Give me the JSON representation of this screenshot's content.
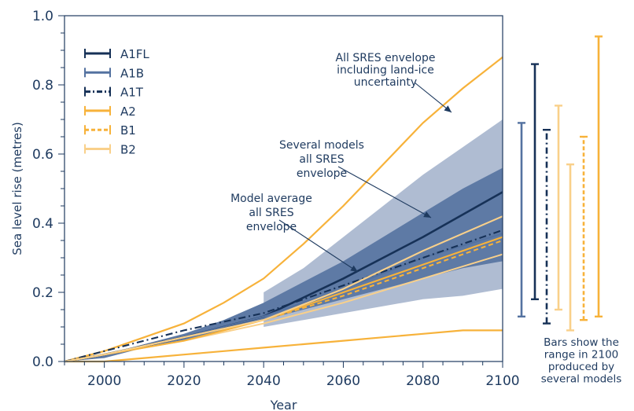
{
  "chart_data": {
    "type": "line",
    "xlabel": "Year",
    "ylabel": "Sea level rise (metres)",
    "xlim": [
      1990,
      2100
    ],
    "ylim": [
      0,
      1.0
    ],
    "xticks": [
      "2000",
      "2020",
      "2040",
      "2060",
      "2080",
      "2100"
    ],
    "yticks": [
      "0.0",
      "0.2",
      "0.4",
      "0.6",
      "0.8",
      "1.0"
    ],
    "grid": false,
    "legend_position": "top-left",
    "colors": {
      "dark_navy": "#163157",
      "slate_blue": "#5472a0",
      "orange": "#f7b23a",
      "light_orange": "#f9d08a",
      "envelope_light": "#afbcd2",
      "envelope_dark": "#5e7aa5",
      "frame": "#1e3a5f"
    },
    "series": [
      {
        "name": "A1FL",
        "style": "solid",
        "color": "#163157",
        "x": [
          1990,
          2000,
          2020,
          2040,
          2060,
          2080,
          2100
        ],
        "y": [
          0.0,
          0.02,
          0.07,
          0.13,
          0.24,
          0.36,
          0.49
        ]
      },
      {
        "name": "A1B",
        "style": "solid",
        "color": "#5472a0",
        "x": [
          1990,
          2000,
          2020,
          2040,
          2060,
          2080,
          2100
        ],
        "y": [
          0.0,
          0.02,
          0.07,
          0.13,
          0.21,
          0.3,
          0.37
        ]
      },
      {
        "name": "A1T",
        "style": "dashdot",
        "color": "#163157",
        "x": [
          1990,
          2000,
          2020,
          2040,
          2060,
          2080,
          2100
        ],
        "y": [
          0.0,
          0.03,
          0.09,
          0.14,
          0.22,
          0.3,
          0.38
        ]
      },
      {
        "name": "A2",
        "style": "solid",
        "color": "#f7b23a",
        "x": [
          1990,
          2000,
          2020,
          2040,
          2060,
          2080,
          2100
        ],
        "y": [
          0.0,
          0.02,
          0.06,
          0.12,
          0.2,
          0.28,
          0.36
        ]
      },
      {
        "name": "B1",
        "style": "dashed",
        "color": "#f7b23a",
        "x": [
          1990,
          2000,
          2020,
          2040,
          2060,
          2080,
          2100
        ],
        "y": [
          0.0,
          0.02,
          0.07,
          0.12,
          0.19,
          0.27,
          0.35
        ]
      },
      {
        "name": "B2",
        "style": "solid",
        "color": "#f9d08a",
        "x": [
          1990,
          2000,
          2020,
          2040,
          2060,
          2080,
          2100
        ],
        "y": [
          0.0,
          0.02,
          0.07,
          0.12,
          0.21,
          0.32,
          0.42
        ]
      }
    ],
    "extra_lines": [
      {
        "color": "#f9d08a",
        "x": [
          1990,
          2000,
          2020,
          2040,
          2060,
          2080,
          2100
        ],
        "y": [
          0.0,
          0.02,
          0.06,
          0.11,
          0.17,
          0.24,
          0.31
        ]
      }
    ],
    "envelopes": [
      {
        "label": "All SRES envelope including land-ice uncertainty",
        "color": "#f7b23a",
        "x": [
          1990,
          2000,
          2010,
          2020,
          2030,
          2040,
          2050,
          2060,
          2070,
          2080,
          2090,
          2100
        ],
        "upper": [
          0.0,
          0.03,
          0.07,
          0.11,
          0.17,
          0.24,
          0.34,
          0.45,
          0.57,
          0.69,
          0.79,
          0.88
        ],
        "lower": [
          0.0,
          0.0,
          0.01,
          0.02,
          0.03,
          0.04,
          0.05,
          0.06,
          0.07,
          0.08,
          0.09,
          0.09
        ]
      },
      {
        "label": "Several models all SRES envelope",
        "color": "#afbcd2",
        "x": [
          2040,
          2050,
          2060,
          2070,
          2080,
          2090,
          2100
        ],
        "upper": [
          0.2,
          0.27,
          0.36,
          0.45,
          0.54,
          0.62,
          0.7
        ],
        "lower": [
          0.1,
          0.12,
          0.14,
          0.16,
          0.18,
          0.19,
          0.21
        ]
      },
      {
        "label": "Model average all SRES envelope",
        "color": "#5e7aa5",
        "x": [
          1990,
          2000,
          2010,
          2020,
          2030,
          2040,
          2050,
          2060,
          2070,
          2080,
          2090,
          2100
        ],
        "upper": [
          0.0,
          0.02,
          0.05,
          0.08,
          0.12,
          0.17,
          0.23,
          0.29,
          0.36,
          0.43,
          0.5,
          0.56
        ],
        "lower": [
          0.0,
          0.01,
          0.04,
          0.06,
          0.09,
          0.12,
          0.15,
          0.18,
          0.21,
          0.24,
          0.27,
          0.29
        ]
      }
    ],
    "annotations": [
      {
        "lines": [
          "All SRES envelope",
          "including land-ice",
          "uncertainty"
        ]
      },
      {
        "lines": [
          "Several models",
          "all SRES",
          "envelope"
        ]
      },
      {
        "lines": [
          "Model average",
          "all SRES",
          "envelope"
        ]
      }
    ],
    "range_bars_2100": [
      {
        "scenario": "A1B",
        "low": 0.13,
        "high": 0.69,
        "style": "solid",
        "color": "#5472a0"
      },
      {
        "scenario": "A1FL",
        "low": 0.18,
        "high": 0.86,
        "style": "solid",
        "color": "#163157"
      },
      {
        "scenario": "A1T",
        "low": 0.11,
        "high": 0.67,
        "style": "dashdot",
        "color": "#163157"
      },
      {
        "scenario": "B2",
        "low": 0.15,
        "high": 0.74,
        "style": "solid",
        "color": "#f9d08a"
      },
      {
        "scenario": "B1",
        "low": 0.09,
        "high": 0.57,
        "style": "solid",
        "color": "#f9d08a"
      },
      {
        "scenario": "B1",
        "low": 0.12,
        "high": 0.65,
        "style": "dashed",
        "color": "#f7b23a"
      },
      {
        "scenario": "A2",
        "low": 0.13,
        "high": 0.94,
        "style": "solid",
        "color": "#f7b23a"
      }
    ],
    "bars_note": [
      "Bars show the",
      "range in 2100",
      "produced by",
      "several models"
    ]
  }
}
